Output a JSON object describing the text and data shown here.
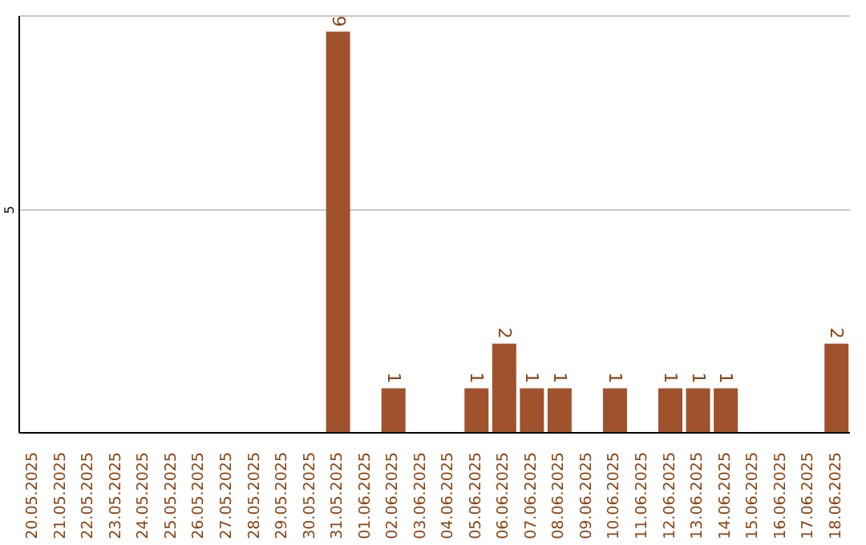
{
  "chart_data": {
    "type": "bar",
    "categories": [
      "20.05.2025",
      "21.05.2025",
      "22.05.2025",
      "23.05.2025",
      "24.05.2025",
      "25.05.2025",
      "26.05.2025",
      "27.05.2025",
      "28.05.2025",
      "29.05.2025",
      "30.05.2025",
      "31.05.2025",
      "01.06.2025",
      "02.06.2025",
      "03.06.2025",
      "04.06.2025",
      "05.06.2025",
      "06.06.2025",
      "07.06.2025",
      "08.06.2025",
      "09.06.2025",
      "10.06.2025",
      "11.06.2025",
      "12.06.2025",
      "13.06.2025",
      "14.06.2025",
      "15.06.2025",
      "16.06.2025",
      "17.06.2025",
      "18.06.2025"
    ],
    "values": [
      0,
      0,
      0,
      0,
      0,
      0,
      0,
      0,
      0,
      0,
      0,
      9,
      0,
      1,
      0,
      0,
      1,
      2,
      1,
      1,
      0,
      1,
      0,
      1,
      1,
      1,
      0,
      0,
      0,
      2
    ],
    "value_labels": [
      null,
      null,
      null,
      null,
      null,
      null,
      null,
      null,
      null,
      null,
      null,
      "9",
      null,
      "1",
      null,
      null,
      "1",
      "2",
      "1",
      "1",
      null,
      "1",
      null,
      "1",
      "1",
      "1",
      null,
      null,
      null,
      "2"
    ],
    "color": "#a0522d",
    "ylim": [
      0,
      9.35
    ],
    "yticks": [
      5
    ],
    "grid": "y"
  }
}
